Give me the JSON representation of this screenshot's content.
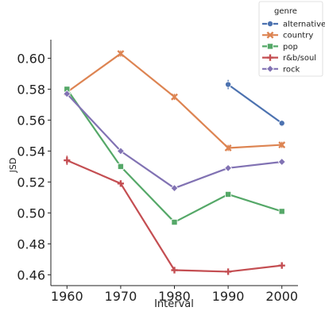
{
  "chart_data": {
    "type": "line",
    "title": "",
    "xlabel": "Interval",
    "ylabel": "JSD",
    "x": [
      1960,
      1970,
      1980,
      1990,
      2000
    ],
    "x_tick_labels": [
      "1960",
      "1970",
      "1980",
      "1990",
      "2000"
    ],
    "ylim": [
      0.453,
      0.612
    ],
    "y_ticks": [
      0.46,
      0.48,
      0.5,
      0.52,
      0.54,
      0.56,
      0.58,
      0.6
    ],
    "y_tick_labels": [
      "0.46",
      "0.48",
      "0.50",
      "0.52",
      "0.54",
      "0.56",
      "0.58",
      "0.60"
    ],
    "grid": false,
    "legend": {
      "title": "genre",
      "placement": "top-right"
    },
    "series": [
      {
        "name": "alternative",
        "color": "#4c72b0",
        "marker": "circle",
        "values": [
          null,
          null,
          null,
          0.583,
          0.558
        ],
        "err": [
          0,
          0,
          0,
          0.003,
          0.002
        ]
      },
      {
        "name": "country",
        "color": "#dd8452",
        "marker": "x",
        "values": [
          0.578,
          0.603,
          0.575,
          0.542,
          0.544
        ],
        "err": [
          0.002,
          0.002,
          0.002,
          0.002,
          0.002
        ]
      },
      {
        "name": "pop",
        "color": "#55a868",
        "marker": "square",
        "values": [
          0.58,
          0.53,
          0.494,
          0.512,
          0.501
        ],
        "err": [
          0.002,
          0.002,
          0.002,
          0.002,
          0.002
        ]
      },
      {
        "name": "r&b/soul",
        "color": "#c44e52",
        "marker": "plus",
        "values": [
          0.534,
          0.519,
          0.463,
          0.462,
          0.466
        ],
        "err": [
          0.003,
          0.002,
          0.002,
          0.002,
          0.002
        ]
      },
      {
        "name": "rock",
        "color": "#8172b3",
        "marker": "diamond",
        "values": [
          0.577,
          0.54,
          0.516,
          0.529,
          0.533
        ],
        "err": [
          0.001,
          0.001,
          0.001,
          0.001,
          0.001
        ]
      }
    ]
  }
}
